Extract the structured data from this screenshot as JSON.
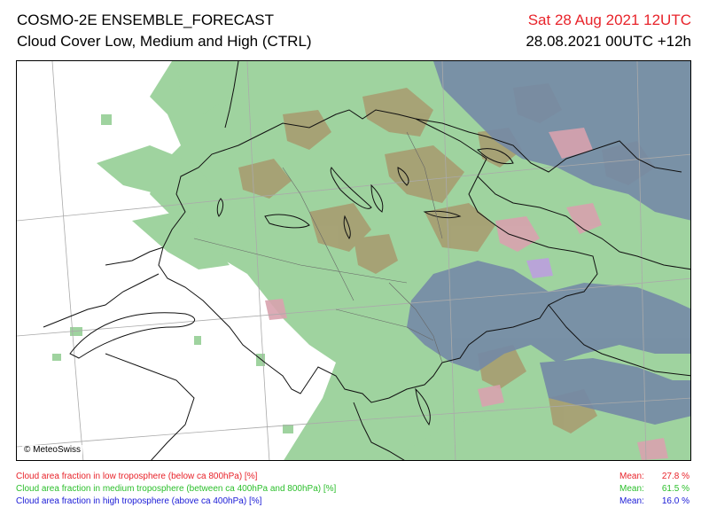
{
  "header": {
    "title": "COSMO-2E ENSEMBLE_FORECAST",
    "subtitle": "Cloud Cover Low, Medium and High (CTRL)",
    "valid_time": "Sat 28 Aug 2021 12UTC",
    "run_time": "28.08.2021 00UTC +12h"
  },
  "map": {
    "copyright": "© MeteoSwiss",
    "colors": {
      "medium": "#9fd39f",
      "high": "#7489a6",
      "low": "#d8a2ae",
      "low_medium": "#a89a6e",
      "all": "#b9a4d8"
    }
  },
  "legend": [
    {
      "label": "Cloud area fraction in low troposphere (below ca 800hPa) [%]",
      "mean_label": "Mean:",
      "mean_value": "27.8 %",
      "color": "#e8232a"
    },
    {
      "label": "Cloud area fraction in medium troposphere (between ca 400hPa and 800hPa) [%]",
      "mean_label": "Mean:",
      "mean_value": "61.5 %",
      "color": "#2bbf2b"
    },
    {
      "label": "Cloud area fraction in high troposphere (above ca 400hPa) [%]",
      "mean_label": "Mean:",
      "mean_value": "16.0 %",
      "color": "#1a1ad6"
    }
  ]
}
